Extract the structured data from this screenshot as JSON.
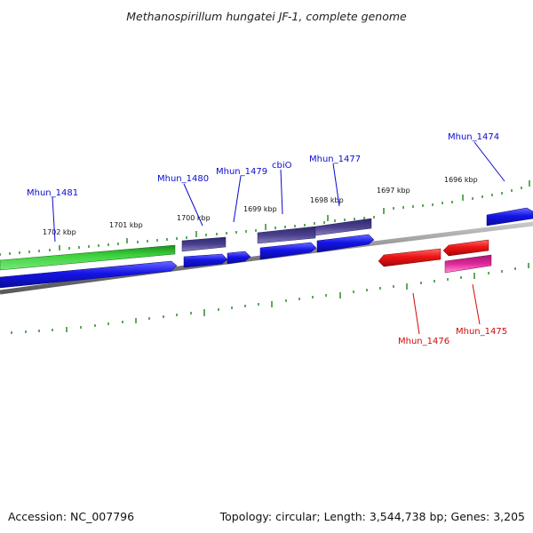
{
  "title": "Methanospirillum hungatei JF-1, complete genome",
  "footer": {
    "accession": "Accession: NC_007796",
    "summary": "Topology: circular; Length: 3,544,738 bp; Genes: 3,205"
  },
  "colors": {
    "backbone": "#8a8a8a",
    "tick": "#2a8a2a",
    "label_forward": "#0a0ad0",
    "label_reverse": "#d00a0a",
    "cds_blue": "#1414e6",
    "cds_green": "#38c838",
    "cds_purple": "#4a3f8c",
    "cds_red": "#ee1414",
    "cds_magenta": "#e0289c"
  },
  "kbp_labels": [
    {
      "id": "kbp-1702",
      "text": "1702 kbp"
    },
    {
      "id": "kbp-1701",
      "text": "1701 kbp"
    },
    {
      "id": "kbp-1700",
      "text": "1700 kbp"
    },
    {
      "id": "kbp-1699",
      "text": "1699 kbp"
    },
    {
      "id": "kbp-1698",
      "text": "1698 kbp"
    },
    {
      "id": "kbp-1697",
      "text": "1697 kbp"
    },
    {
      "id": "kbp-1696",
      "text": "1696 kbp"
    }
  ],
  "gene_labels": [
    {
      "id": "gene-mhun-1481",
      "text": "Mhun_1481",
      "strand": "forward"
    },
    {
      "id": "gene-mhun-1480",
      "text": "Mhun_1480",
      "strand": "forward"
    },
    {
      "id": "gene-mhun-1479",
      "text": "Mhun_1479",
      "strand": "forward"
    },
    {
      "id": "gene-cbio",
      "text": "cbiO",
      "strand": "forward"
    },
    {
      "id": "gene-mhun-1477",
      "text": "Mhun_1477",
      "strand": "forward"
    },
    {
      "id": "gene-mhun-1474",
      "text": "Mhun_1474",
      "strand": "forward"
    },
    {
      "id": "gene-mhun-1476",
      "text": "Mhun_1476",
      "strand": "reverse"
    },
    {
      "id": "gene-mhun-1475",
      "text": "Mhun_1475",
      "strand": "reverse"
    }
  ]
}
